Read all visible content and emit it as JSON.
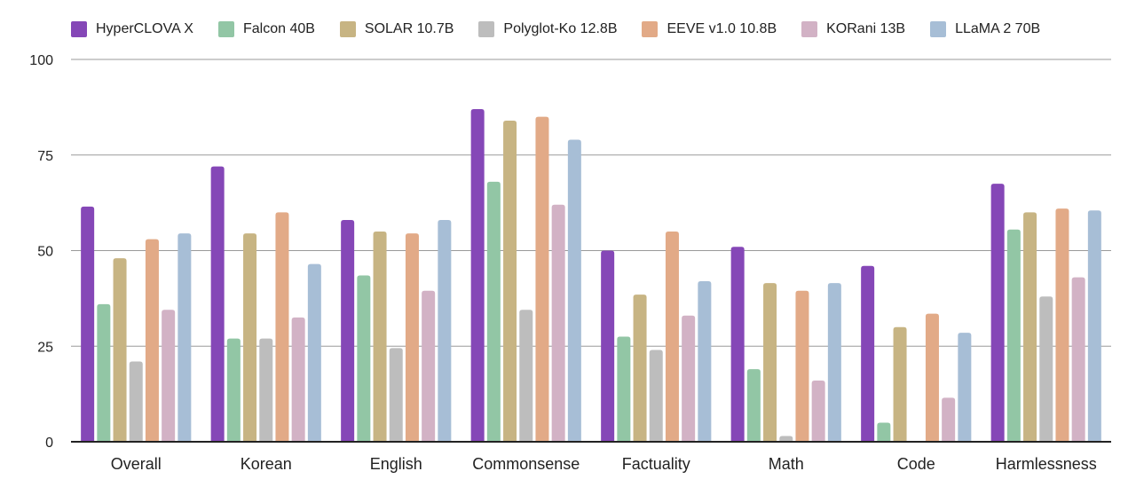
{
  "chart_data": {
    "type": "bar",
    "title": "",
    "xlabel": "",
    "ylabel": "",
    "ylim": [
      0,
      100
    ],
    "yticks": [
      0,
      25,
      50,
      75,
      100
    ],
    "grid": true,
    "legend_position": "top",
    "categories": [
      "Overall",
      "Korean",
      "English",
      "Commonsense",
      "Factuality",
      "Math",
      "Code",
      "Harmlessness"
    ],
    "series": [
      {
        "name": "HyperCLOVA X",
        "color": "#8547b7",
        "values": [
          61.5,
          72.0,
          58.0,
          87.0,
          50.0,
          51.0,
          46.0,
          67.5
        ]
      },
      {
        "name": "Falcon 40B",
        "color": "#92c6a5",
        "values": [
          36.0,
          27.0,
          43.5,
          68.0,
          27.5,
          19.0,
          5.0,
          55.5
        ]
      },
      {
        "name": "SOLAR 10.7B",
        "color": "#c7b483",
        "values": [
          48.0,
          54.5,
          55.0,
          84.0,
          38.5,
          41.5,
          30.0,
          60.0
        ]
      },
      {
        "name": "Polyglot-Ko 12.8B",
        "color": "#bdbdbd",
        "values": [
          21.0,
          27.0,
          24.5,
          34.5,
          24.0,
          1.5,
          0,
          38.0
        ]
      },
      {
        "name": "EEVE v1.0 10.8B",
        "color": "#e2aa87",
        "values": [
          53.0,
          60.0,
          54.5,
          85.0,
          55.0,
          39.5,
          33.5,
          61.0
        ]
      },
      {
        "name": "KORani 13B",
        "color": "#d2b2c5",
        "values": [
          34.5,
          32.5,
          39.5,
          62.0,
          33.0,
          16.0,
          11.5,
          43.0
        ]
      },
      {
        "name": "LLaMA 2 70B",
        "color": "#a7bed6",
        "values": [
          54.5,
          46.5,
          58.0,
          79.0,
          42.0,
          41.5,
          28.5,
          60.5
        ]
      }
    ]
  }
}
